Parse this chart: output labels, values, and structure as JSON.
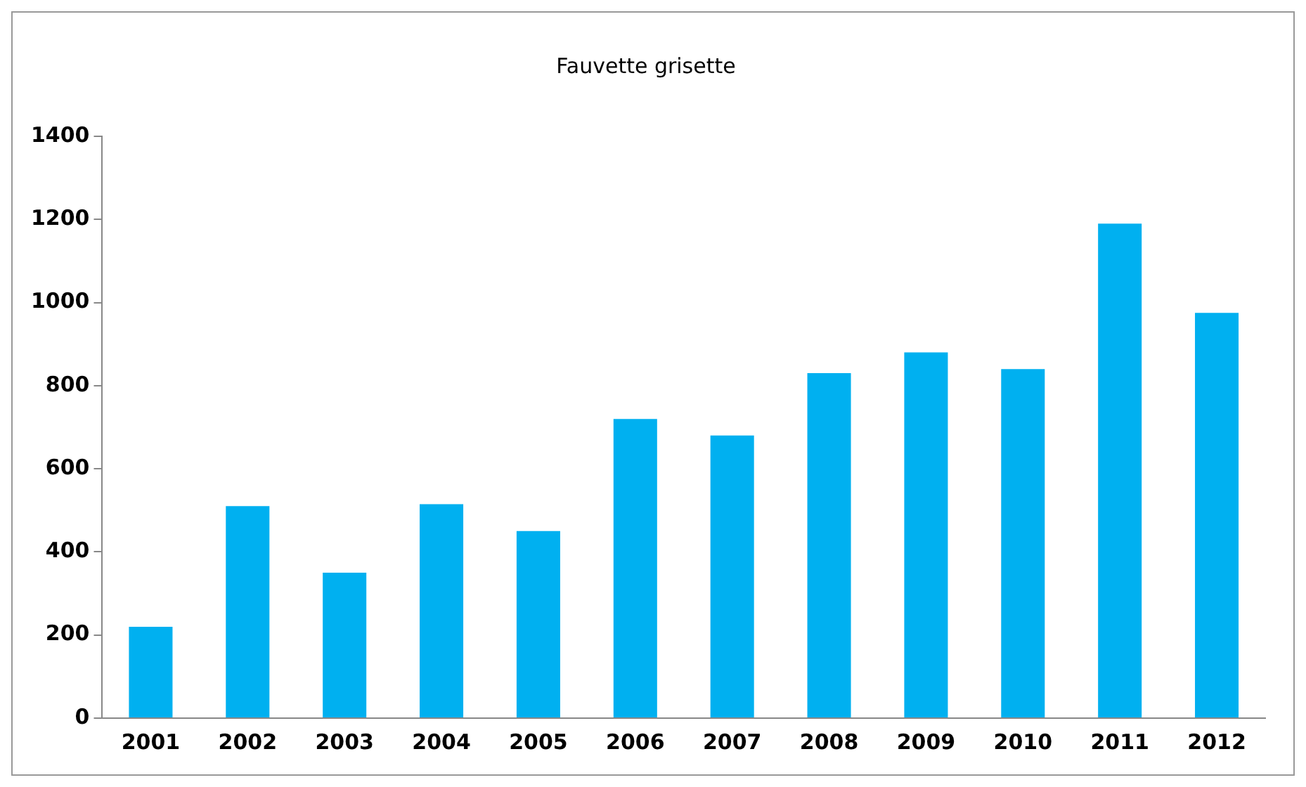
{
  "chart_data": {
    "type": "bar",
    "title": "Fauvette grisette",
    "categories": [
      "2001",
      "2002",
      "2003",
      "2004",
      "2005",
      "2006",
      "2007",
      "2008",
      "2009",
      "2010",
      "2011",
      "2012"
    ],
    "values": [
      220,
      510,
      350,
      515,
      450,
      720,
      680,
      830,
      880,
      840,
      1190,
      975
    ],
    "color": "#00b0f0",
    "ylim": [
      0,
      1400
    ],
    "yticks": [
      0,
      200,
      400,
      600,
      800,
      1000,
      1200,
      1400
    ],
    "grid": false,
    "legend": false
  }
}
